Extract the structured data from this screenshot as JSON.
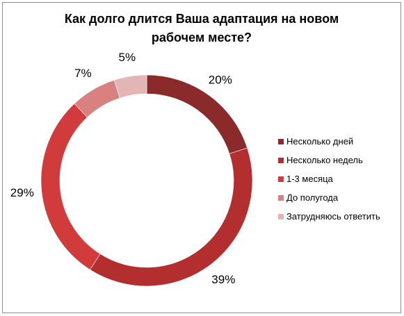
{
  "chart_data": {
    "type": "pie",
    "variant": "doughnut",
    "title": "Как долго длится Ваша адаптация на новом рабочем месте?",
    "title_lines": [
      "Как долго длится Ваша адаптация на новом",
      "рабочем месте?"
    ],
    "legend_position": "right",
    "categories": [
      "Несколько дней",
      "Несколько недель",
      "1-3 месяца",
      "До полугода",
      "Затрудняюсь ответить"
    ],
    "values": [
      20,
      39,
      29,
      7,
      5
    ],
    "labels": [
      "20%",
      "39%",
      "29%",
      "7%",
      "5%"
    ],
    "colors": [
      "#8b2a2a",
      "#b32e2e",
      "#d23b3b",
      "#d98080",
      "#e3b5b5"
    ]
  }
}
